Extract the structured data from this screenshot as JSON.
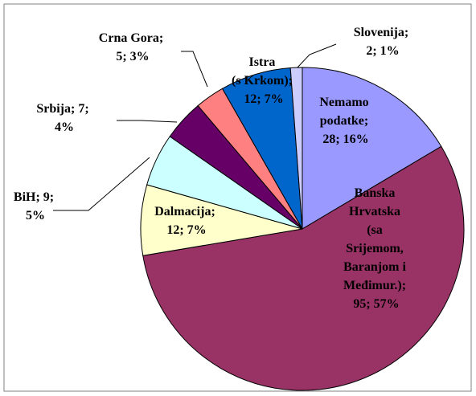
{
  "chart_data": {
    "type": "pie",
    "values": [
      28,
      95,
      12,
      9,
      7,
      5,
      12,
      2
    ],
    "value_labels": [
      "Nemamo podatke; 28; 16%",
      "Banska Hrvatska (sa Srijemom, Baranjom i Međimur.); 95; 57%",
      "Dalmacija; 12; 7%",
      "BiH; 9; 5%",
      "Srbija; 7; 4%",
      "Crna Gora; 5; 3%",
      "Istra (s Krkom); 12; 7%",
      "Slovenija; 2; 1%"
    ],
    "colors": [
      "#9999ff",
      "#993366",
      "#ffffcc",
      "#ccffff",
      "#660066",
      "#ff8080",
      "#0066cc",
      "#ccccff"
    ]
  }
}
